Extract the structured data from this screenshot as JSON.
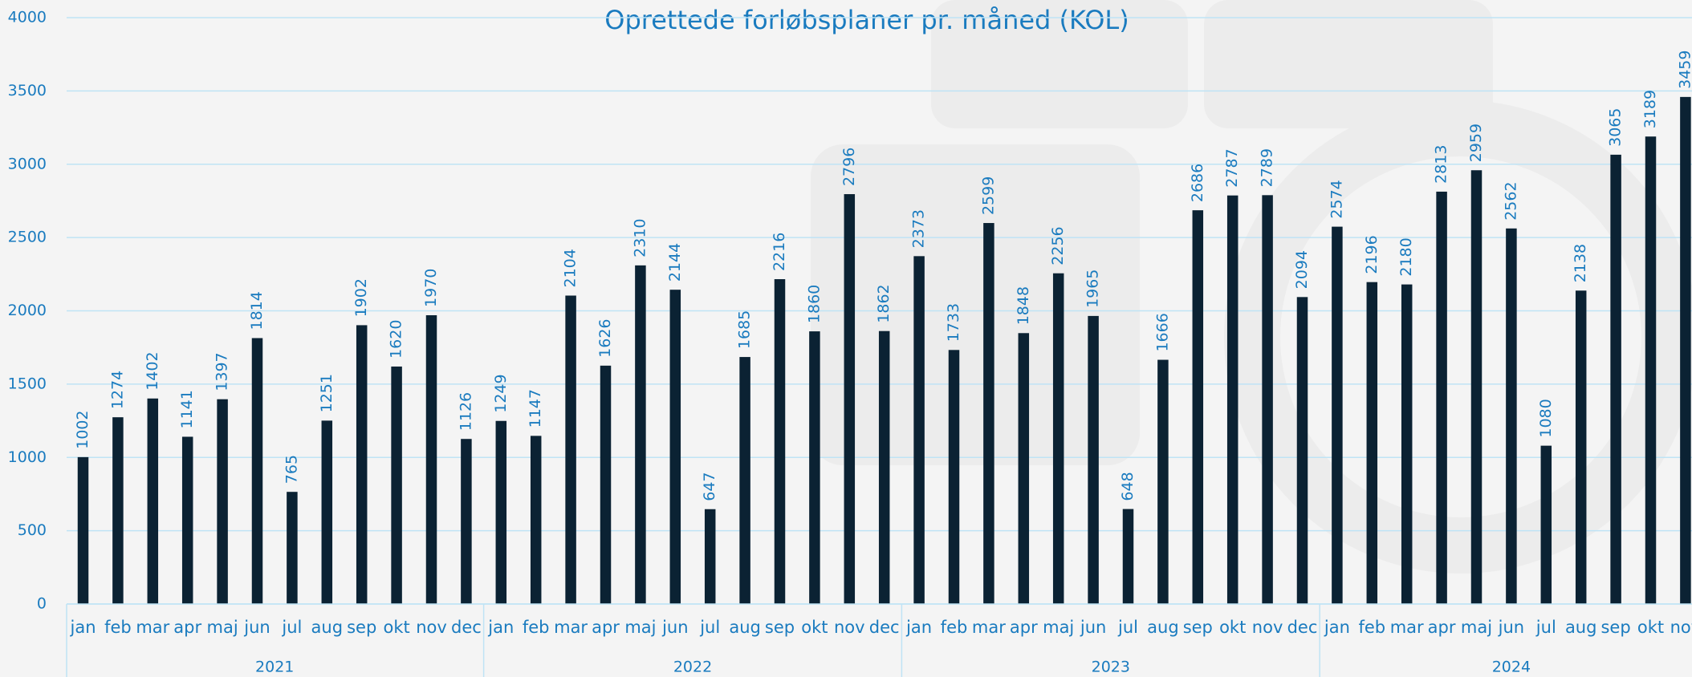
{
  "chart_data": {
    "type": "bar",
    "title": "Oprettede forløbsplaner pr. måned (KOL)",
    "groups": [
      {
        "label": "2021",
        "categories": [
          "jan",
          "feb",
          "mar",
          "apr",
          "maj",
          "jun",
          "jul",
          "aug",
          "sep",
          "okt",
          "nov",
          "dec"
        ]
      },
      {
        "label": "2022",
        "categories": [
          "jan",
          "feb",
          "mar",
          "apr",
          "maj",
          "jun",
          "jul",
          "aug",
          "sep",
          "okt",
          "nov",
          "dec"
        ]
      },
      {
        "label": "2023",
        "categories": [
          "jan",
          "feb",
          "mar",
          "apr",
          "maj",
          "jun",
          "jul",
          "aug",
          "sep",
          "okt",
          "nov",
          "dec"
        ]
      },
      {
        "label": "2024",
        "categories": [
          "jan",
          "feb",
          "mar",
          "apr",
          "maj",
          "jun",
          "jul",
          "aug",
          "sep",
          "okt",
          "nov"
        ]
      }
    ],
    "values": [
      1002,
      1274,
      1402,
      1141,
      1397,
      1814,
      765,
      1251,
      1902,
      1620,
      1970,
      1126,
      1249,
      1147,
      2104,
      1626,
      2310,
      2144,
      647,
      1685,
      2216,
      1860,
      2796,
      1862,
      2373,
      1733,
      2599,
      1848,
      2256,
      1965,
      648,
      1666,
      2686,
      2787,
      2789,
      2094,
      2574,
      2196,
      2180,
      2813,
      2959,
      2562,
      1080,
      2138,
      3065,
      3189,
      3459
    ],
    "color": "#0b2233",
    "ylim": [
      0,
      4000
    ],
    "yticks": [
      0,
      500,
      1000,
      1500,
      2000,
      2500,
      3000,
      3500,
      4000
    ],
    "grid": true
  }
}
